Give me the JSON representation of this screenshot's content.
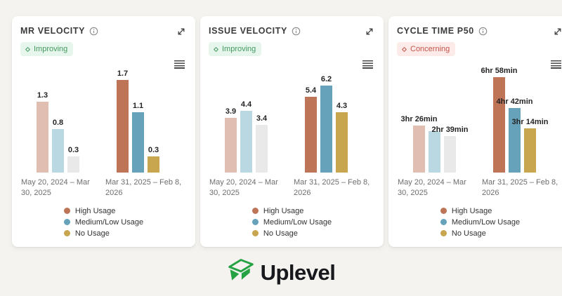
{
  "page": {
    "background_color": "#f4f3ef",
    "card_color": "#ffffff"
  },
  "icons": {
    "title_info": "info-circle-icon",
    "card_expand": "expand-diagonal-arrows-icon",
    "chart_menu": "hamburger-menu-icon",
    "badge_mark": "diamond-sparkle-icon",
    "logo_mark": "uplevel-green-box-icon"
  },
  "legend": {
    "items": [
      {
        "label": "High Usage",
        "color": "#bd7457"
      },
      {
        "label": "Medium/Low Usage",
        "color": "#66a3bb"
      },
      {
        "label": "No Usage",
        "color": "#c8a64f"
      }
    ]
  },
  "chart_data": [
    {
      "type": "bar",
      "title": "MR VELOCITY",
      "badge": {
        "label": "Improving",
        "status": "improving"
      },
      "categories": [
        "May 20, 2024 – Mar 30, 2025",
        "Mar 31, 2025 – Feb 8, 2026"
      ],
      "series": [
        {
          "name": "High Usage",
          "color": "#bd7457",
          "muted_color": "#e0bfb2",
          "values": [
            1.3,
            1.7
          ],
          "labels": [
            "1.3",
            "1.7"
          ]
        },
        {
          "name": "Medium/Low Usage",
          "color": "#66a3bb",
          "muted_color": "#b9d8e2",
          "values": [
            0.8,
            1.1
          ],
          "labels": [
            "0.8",
            "1.1"
          ]
        },
        {
          "name": "No Usage",
          "color": "#c8a64f",
          "muted_color": "#e9e9e9",
          "values": [
            0.3,
            0.3
          ],
          "labels": [
            "0.3",
            "0.3"
          ]
        }
      ],
      "ylim": [
        0,
        1.8
      ],
      "grid": false,
      "legend_position": "bottom"
    },
    {
      "type": "bar",
      "title": "ISSUE VELOCITY",
      "badge": {
        "label": "Improving",
        "status": "improving"
      },
      "categories": [
        "May 20, 2024 – Mar 30, 2025",
        "Mar 31, 2025 – Feb 8, 2026"
      ],
      "series": [
        {
          "name": "High Usage",
          "color": "#bd7457",
          "muted_color": "#e0bfb2",
          "values": [
            3.9,
            5.4
          ],
          "labels": [
            "3.9",
            "5.4"
          ]
        },
        {
          "name": "Medium/Low Usage",
          "color": "#66a3bb",
          "muted_color": "#b9d8e2",
          "values": [
            4.4,
            6.2
          ],
          "labels": [
            "4.4",
            "6.2"
          ]
        },
        {
          "name": "No Usage",
          "color": "#c8a64f",
          "muted_color": "#e9e9e9",
          "values": [
            3.4,
            4.3
          ],
          "labels": [
            "3.4",
            "4.3"
          ]
        }
      ],
      "ylim": [
        0,
        7
      ],
      "grid": false,
      "legend_position": "bottom"
    },
    {
      "type": "bar",
      "title": "CYCLE TIME P50",
      "badge": {
        "label": "Concerning",
        "status": "concerning"
      },
      "categories": [
        "May 20, 2024 – Mar 30, 2025",
        "Mar 31, 2025 – Feb 8, 2026"
      ],
      "unit": "minutes",
      "series": [
        {
          "name": "High Usage",
          "color": "#bd7457",
          "muted_color": "#e0bfb2",
          "values": [
            206,
            418
          ],
          "labels": [
            "3hr 26min",
            "6hr 58min"
          ]
        },
        {
          "name": "Medium/Low Usage",
          "color": "#66a3bb",
          "muted_color": "#b9d8e2",
          "values": [
            181,
            282
          ],
          "labels": [
            "",
            "4hr 42min"
          ]
        },
        {
          "name": "No Usage",
          "color": "#c8a64f",
          "muted_color": "#e9e9e9",
          "values": [
            159,
            194
          ],
          "labels": [
            "2hr 39min",
            "3hr 14min"
          ]
        }
      ],
      "ylim": [
        0,
        430
      ],
      "grid": false,
      "legend_position": "bottom"
    }
  ],
  "logo": {
    "text": "Uplevel",
    "icon_color": "#25a244",
    "text_color": "#17191c"
  }
}
